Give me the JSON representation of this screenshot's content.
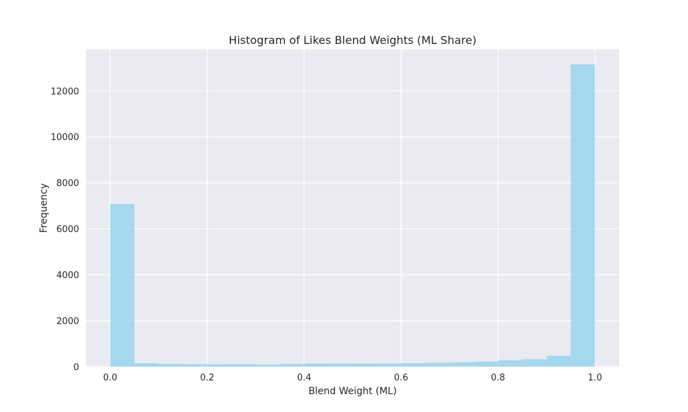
{
  "chart_data": {
    "type": "bar",
    "title": "Histogram of Likes Blend Weights (ML Share)",
    "xlabel": "Blend Weight (ML)",
    "ylabel": "Frequency",
    "xlim": [
      -0.05,
      1.05
    ],
    "ylim": [
      0,
      13800
    ],
    "x_ticks": [
      0.0,
      0.2,
      0.4,
      0.6,
      0.8,
      1.0
    ],
    "x_tick_labels": [
      "0.0",
      "0.2",
      "0.4",
      "0.6",
      "0.8",
      "1.0"
    ],
    "y_ticks": [
      0,
      2000,
      4000,
      6000,
      8000,
      10000,
      12000
    ],
    "y_tick_labels": [
      "0",
      "2000",
      "4000",
      "6000",
      "8000",
      "10000",
      "12000"
    ],
    "bin_edges": [
      0.0,
      0.05,
      0.1,
      0.15,
      0.2,
      0.25,
      0.3,
      0.35,
      0.4,
      0.45,
      0.5,
      0.55,
      0.6,
      0.65,
      0.7,
      0.75,
      0.8,
      0.85,
      0.9,
      0.95,
      1.0
    ],
    "values": [
      7070,
      150,
      120,
      110,
      105,
      110,
      90,
      115,
      135,
      140,
      130,
      140,
      150,
      170,
      190,
      220,
      280,
      320,
      470,
      13150
    ],
    "grid": true,
    "legend": "none",
    "colors": {
      "bar": "#87ceeb",
      "background": "#eaeaf2",
      "grid": "#ffffff"
    }
  }
}
